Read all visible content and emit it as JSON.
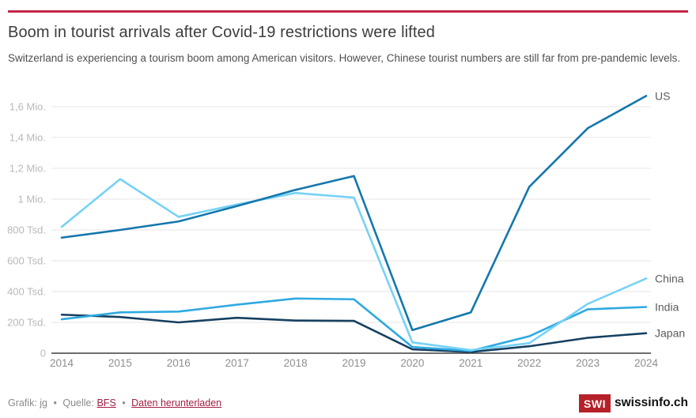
{
  "header": {
    "title": "Boom in tourist arrivals after Covid-19 restrictions were lifted",
    "subtitle": "Switzerland is experiencing a tourism boom among American visitors. However, Chinese tourist numbers are still far from pre-pandemic levels."
  },
  "footer": {
    "credit_prefix": "Grafik: jg",
    "separator": "•",
    "source_label": "Quelle:",
    "source_link": "BFS",
    "download_link": "Daten herunterladen",
    "logo_text": "SWI",
    "brand_text": "swissinfo.ch"
  },
  "colors": {
    "top_rule": "#c3264a",
    "grid": "#e4e4e4",
    "axis": "#3f3f3f",
    "y_tick_label": "#b9b9b9",
    "x_tick_label": "#8f8f8f",
    "series_end_label": "#5c5c5c",
    "logo_red": "#b62129",
    "link_red": "#a21e41"
  },
  "chart_data": {
    "type": "line",
    "x": [
      2014,
      2015,
      2016,
      2017,
      2018,
      2019,
      2020,
      2021,
      2022,
      2023,
      2024
    ],
    "unit": "arrivals (thousands)",
    "ylim_thousands": [
      0,
      1600
    ],
    "grid": true,
    "legend_position": "right-end-labels",
    "y_ticks": [
      "0",
      "200 Tsd.",
      "400 Tsd.",
      "600 Tsd.",
      "800 Tsd.",
      "1 Mio.",
      "1,2 Mio.",
      "1,4 Mio.",
      "1,6 Mio."
    ],
    "series": [
      {
        "name": "US",
        "color": "#1477ac",
        "values_thousands": [
          750,
          800,
          855,
          955,
          1060,
          1150,
          150,
          265,
          1080,
          1460,
          1670
        ]
      },
      {
        "name": "China",
        "color": "#76d2f6",
        "values_thousands": [
          820,
          1130,
          885,
          965,
          1040,
          1010,
          70,
          20,
          65,
          320,
          485
        ]
      },
      {
        "name": "India",
        "color": "#2ea9e0",
        "values_thousands": [
          220,
          265,
          270,
          315,
          355,
          350,
          40,
          15,
          110,
          285,
          300
        ]
      },
      {
        "name": "Japan",
        "color": "#164060",
        "values_thousands": [
          250,
          235,
          200,
          230,
          212,
          210,
          25,
          8,
          45,
          100,
          130
        ]
      }
    ]
  }
}
